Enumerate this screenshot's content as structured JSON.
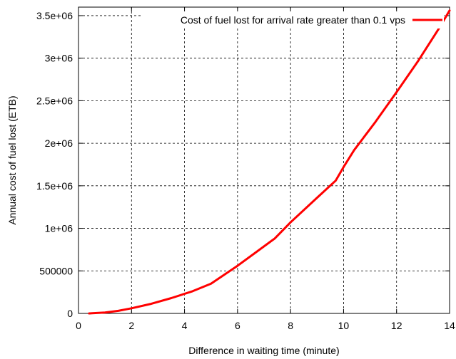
{
  "chart_data": {
    "type": "line",
    "title": "",
    "xlabel": "Difference in waiting time (minute)",
    "ylabel": "Annual cost of fuel lost (ETB)",
    "xlim": [
      0,
      14
    ],
    "ylim": [
      0,
      3600000
    ],
    "grid": true,
    "legend_position": "top-right",
    "x_ticks": [
      0,
      2,
      4,
      6,
      8,
      10,
      12,
      14
    ],
    "x_tick_labels": [
      "0",
      "2",
      "4",
      "6",
      "8",
      "10",
      "12",
      "14"
    ],
    "y_ticks": [
      0,
      500000,
      1000000,
      1500000,
      2000000,
      2500000,
      3000000,
      3500000
    ],
    "y_tick_labels": [
      "0",
      "500000",
      "1e+06",
      "1.5e+06",
      "2e+06",
      "2.5e+06",
      "3e+06",
      "3.5e+06"
    ],
    "series": [
      {
        "name": "Cost of fuel lost for arrival rate greater than 0.1 vps",
        "color": "#ff0000",
        "x": [
          0.4,
          1.0,
          1.5,
          2.0,
          2.7,
          3.5,
          4.3,
          5.0,
          6.0,
          6.7,
          7.4,
          8.0,
          9.0,
          9.7,
          10.0,
          10.4,
          11.2,
          12.0,
          12.8,
          13.6,
          14.0
        ],
        "y": [
          0,
          10000,
          30000,
          60000,
          110000,
          180000,
          260000,
          350000,
          560000,
          720000,
          880000,
          1070000,
          1360000,
          1560000,
          1720000,
          1920000,
          2250000,
          2600000,
          2960000,
          3350000,
          3560000
        ]
      }
    ]
  }
}
